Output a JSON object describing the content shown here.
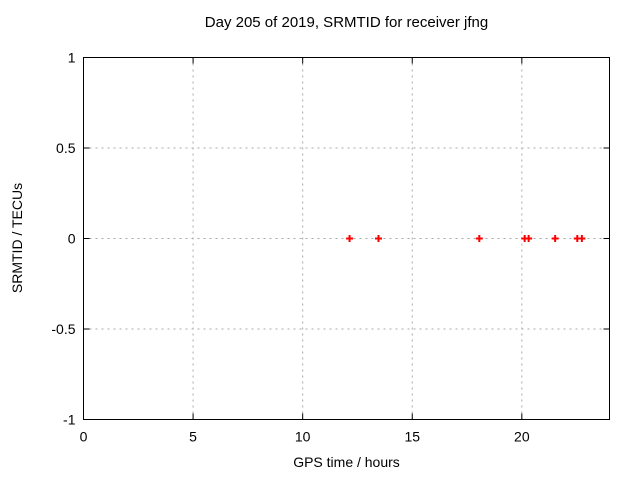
{
  "chart_data": {
    "type": "scatter",
    "title": "Day 205 of 2019, SRMTID for receiver jfng",
    "xlabel": "GPS time / hours",
    "ylabel": "SRMTID / TECUs",
    "xlim": [
      0,
      24
    ],
    "ylim": [
      -1,
      1
    ],
    "xticks": [
      0,
      5,
      10,
      15,
      20
    ],
    "ytick_labels": [
      "1",
      "0.5",
      "0",
      "-0.5",
      "-1"
    ],
    "yticks": [
      1,
      0.5,
      0,
      -0.5,
      -1
    ],
    "grid": true,
    "grid_style": "dashed",
    "legend": "none",
    "series": [
      {
        "name": "SRMTID",
        "marker": "plus",
        "color": "#ff0000",
        "points": [
          {
            "x": 12.14,
            "y": 0.0
          },
          {
            "x": 13.46,
            "y": 0.0
          },
          {
            "x": 18.06,
            "y": 0.0
          },
          {
            "x": 20.13,
            "y": 0.0
          },
          {
            "x": 20.31,
            "y": 0.0
          },
          {
            "x": 21.52,
            "y": 0.0
          },
          {
            "x": 22.53,
            "y": 0.0
          },
          {
            "x": 22.74,
            "y": 0.0
          }
        ]
      }
    ],
    "colors": {
      "background": "#ffffff",
      "border": "#000000",
      "grid": "#a8a8a8",
      "text": "#000000",
      "points": "#ff0000"
    }
  }
}
